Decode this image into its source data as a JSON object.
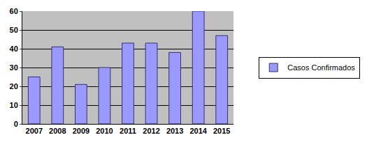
{
  "chart_data": {
    "type": "bar",
    "categories": [
      "2007",
      "2008",
      "2009",
      "2010",
      "2011",
      "2012",
      "2013",
      "2014",
      "2015"
    ],
    "series": [
      {
        "name": "Casos Confirmados",
        "color": "#9999ff",
        "values": [
          25,
          41,
          21,
          30,
          43,
          43,
          38,
          60,
          47
        ]
      }
    ],
    "ylim": [
      0,
      60
    ],
    "yticks": [
      0,
      10,
      20,
      30,
      40,
      50,
      60
    ],
    "grid": true,
    "legend": "right"
  }
}
